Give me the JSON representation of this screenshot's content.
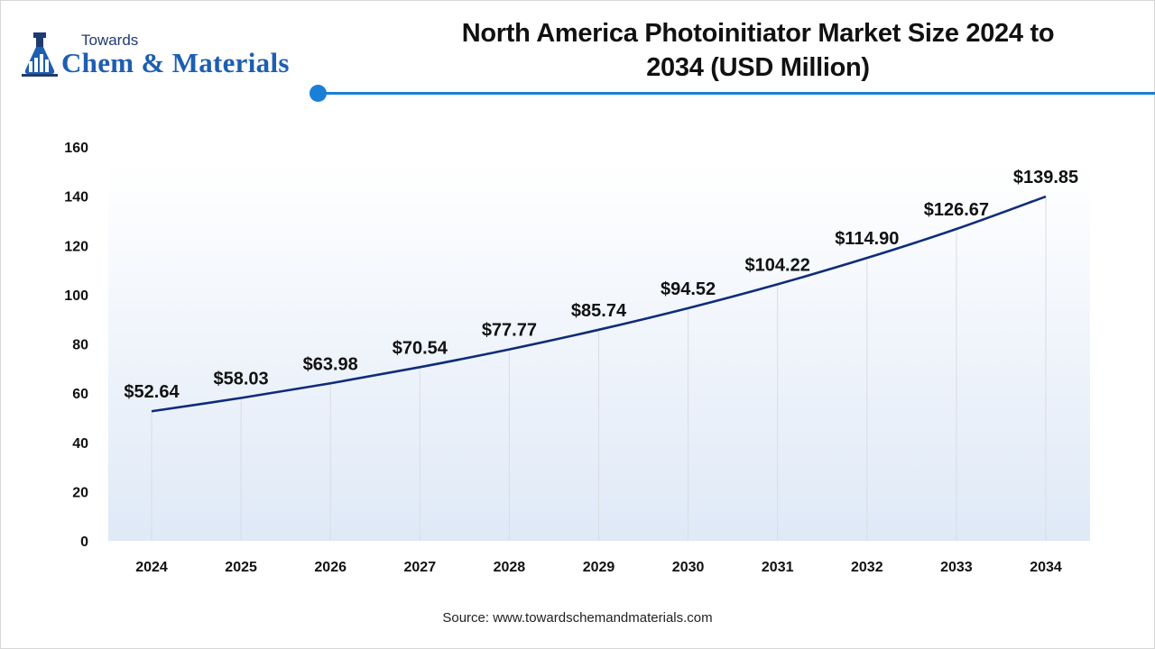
{
  "brand": {
    "line1": "Towards",
    "line2": "Chem & Materials"
  },
  "header": {
    "title_line1": "North America Photoinitiator Market Size 2024 to",
    "title_line2": "2034 (USD Million)"
  },
  "footer": {
    "source": "Source: www.towardschemandmaterials.com"
  },
  "chart_data": {
    "type": "line",
    "title": "North America Photoinitiator Market Size 2024 to 2034 (USD Million)",
    "xlabel": "",
    "ylabel": "",
    "categories": [
      "2024",
      "2025",
      "2026",
      "2027",
      "2028",
      "2029",
      "2030",
      "2031",
      "2032",
      "2033",
      "2034"
    ],
    "series": [
      {
        "values": [
          52.64,
          58.03,
          63.98,
          70.54,
          77.77,
          85.74,
          94.52,
          104.22,
          114.9,
          126.67,
          139.85
        ],
        "labels": [
          "$52.64",
          "$58.03",
          "$63.98",
          "$70.54",
          "$77.77",
          "$85.74",
          "$94.52",
          "$104.22",
          "$114.90",
          "$126.67",
          "$139.85"
        ]
      }
    ],
    "ylim": [
      0,
      160
    ],
    "yticks": [
      "0",
      "20",
      "40",
      "60",
      "80",
      "100",
      "120",
      "140",
      "160"
    ],
    "grid": "vertical",
    "legend": "none",
    "colors": {
      "line": "#0f2c7a",
      "plot_bg_top": "#ffffff",
      "plot_bg_bottom": "#dfe9f7",
      "grid": "#d9dde3"
    }
  }
}
